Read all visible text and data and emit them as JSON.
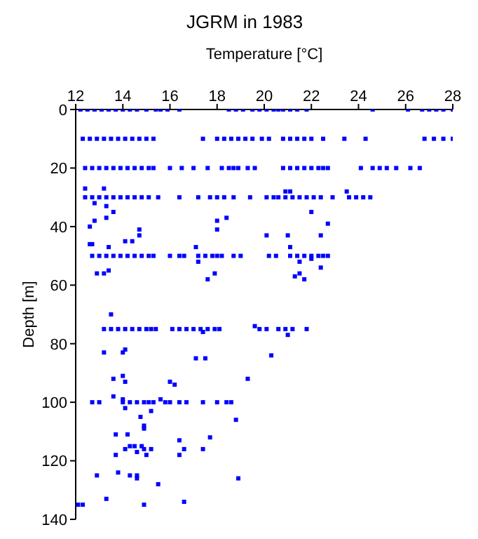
{
  "chart_data": {
    "type": "scatter",
    "title": "JGRM in 1983",
    "xlabel": "Temperature [°C]",
    "ylabel": "Depth [m]",
    "xlim": [
      12,
      28
    ],
    "xticks": [
      12,
      14,
      16,
      18,
      20,
      22,
      24,
      26,
      28
    ],
    "ylim": [
      140,
      0
    ],
    "yticks": [
      0,
      20,
      40,
      60,
      80,
      100,
      120,
      140
    ],
    "grid": false,
    "legend": false,
    "marker": "square",
    "series": [
      {
        "color": "#0000ff",
        "x": [
          12.2,
          12.5,
          12.8,
          13.1,
          13.4,
          13.7,
          14.0,
          14.3,
          14.6,
          15.0,
          15.4,
          15.6,
          15.9,
          16.4,
          18.5,
          18.8,
          19.1,
          19.5,
          19.8,
          20.1,
          20.4,
          20.6,
          20.8,
          21.1,
          21.4,
          21.8,
          24.6,
          26.1,
          26.7,
          27.0,
          27.3,
          27.6,
          28.0
        ],
        "values": [
          0,
          0,
          0,
          0,
          0,
          0,
          0,
          0,
          0,
          0,
          0,
          0,
          0,
          0,
          0,
          0,
          0,
          0,
          0,
          0,
          0,
          0,
          0,
          0,
          0,
          0,
          0,
          0,
          0,
          0,
          0,
          0,
          0
        ]
      },
      {
        "color": "#0000ff",
        "x": [
          12.3,
          12.6,
          12.9,
          13.2,
          13.5,
          13.8,
          14.1,
          14.4,
          14.7,
          15.0,
          15.3,
          17.4,
          18.0,
          18.3,
          18.6,
          18.9,
          19.2,
          19.5,
          19.9,
          20.2,
          20.8,
          21.1,
          21.4,
          21.7,
          22.0,
          22.5,
          23.4,
          24.3,
          26.8,
          27.2,
          27.6,
          28.0
        ],
        "values": [
          10,
          10,
          10,
          10,
          10,
          10,
          10,
          10,
          10,
          10,
          10,
          10,
          10,
          10,
          10,
          10,
          10,
          10,
          10,
          10,
          10,
          10,
          10,
          10,
          10,
          10,
          10,
          10,
          10,
          10,
          10,
          10
        ]
      },
      {
        "color": "#0000ff",
        "x": [
          12.4,
          12.7,
          13.0,
          13.3,
          13.6,
          13.9,
          14.2,
          14.5,
          14.8,
          15.1,
          15.3,
          16.0,
          16.5,
          17.0,
          17.6,
          18.2,
          18.5,
          18.7,
          18.9,
          19.3,
          19.6,
          20.8,
          21.1,
          21.4,
          21.7,
          22.0,
          22.3,
          22.5,
          22.7,
          24.1,
          24.6,
          24.9,
          25.2,
          25.6,
          26.2,
          26.6
        ],
        "values": [
          20,
          20,
          20,
          20,
          20,
          20,
          20,
          20,
          20,
          20,
          20,
          20,
          20,
          20,
          20,
          20,
          20,
          20,
          20,
          20,
          20,
          20,
          20,
          20,
          20,
          20,
          20,
          20,
          20,
          20,
          20,
          20,
          20,
          20,
          20,
          20
        ]
      },
      {
        "color": "#0000ff",
        "x": [
          12.4,
          12.7,
          13.0,
          13.3,
          13.6,
          13.9,
          14.2,
          14.5,
          14.8,
          15.1,
          15.5,
          16.4,
          17.2,
          17.7,
          18.0,
          18.3,
          18.7,
          19.4,
          20.1,
          20.4,
          20.6,
          20.9,
          21.2,
          21.5,
          21.8,
          22.1,
          22.4,
          22.9,
          23.6,
          23.9,
          24.2,
          24.5
        ],
        "values": [
          30,
          30,
          30,
          30,
          30,
          30,
          30,
          30,
          30,
          30,
          30,
          30,
          30,
          30,
          30,
          30,
          30,
          30,
          30,
          30,
          30,
          30,
          30,
          30,
          30,
          30,
          30,
          30,
          30,
          30,
          30,
          30
        ]
      },
      {
        "color": "#0000ff",
        "x": [
          12.7,
          13.0,
          13.3,
          13.6,
          13.9,
          14.2,
          14.5,
          14.8,
          15.1,
          15.3,
          16.0,
          16.4,
          16.6,
          17.2,
          17.5,
          17.8,
          18.0,
          18.2,
          18.7,
          19.0,
          20.2,
          20.5,
          21.1,
          21.4,
          21.7,
          22.0,
          22.3,
          22.5,
          22.7
        ],
        "values": [
          50,
          50,
          50,
          50,
          50,
          50,
          50,
          50,
          50,
          50,
          50,
          50,
          50,
          50,
          50,
          50,
          50,
          50,
          50,
          50,
          50,
          50,
          50,
          50,
          50,
          50,
          50,
          50,
          50
        ]
      },
      {
        "color": "#0000ff",
        "x": [
          13.2,
          13.5,
          13.8,
          14.1,
          14.4,
          14.7,
          15.0,
          15.2,
          15.4,
          16.1,
          16.4,
          16.7,
          17.0,
          17.3,
          17.6,
          17.9,
          18.1,
          19.8,
          20.1,
          20.6,
          20.9,
          21.2,
          21.8
        ],
        "values": [
          75,
          75,
          75,
          75,
          75,
          75,
          75,
          75,
          75,
          75,
          75,
          75,
          75,
          75,
          75,
          75,
          75,
          75,
          75,
          75,
          75,
          75,
          75
        ]
      },
      {
        "color": "#0000ff",
        "x": [
          12.7,
          13.0,
          14.0,
          14.3,
          14.6,
          14.9,
          15.1,
          15.3,
          15.8,
          16.0,
          16.4,
          16.7,
          17.4,
          18.0,
          18.4,
          18.6
        ],
        "values": [
          100,
          100,
          100,
          100,
          100,
          100,
          100,
          100,
          100,
          100,
          100,
          100,
          100,
          100,
          100,
          100
        ]
      },
      {
        "color": "#0000ff",
        "x": [
          12.4,
          13.2,
          20.9,
          21.1,
          23.5,
          12.8,
          12.6,
          12.6,
          12.7,
          12.8,
          13.3,
          13.3,
          13.6,
          13.4,
          14.1,
          14.4,
          14.7,
          14.7,
          12.9,
          13.2,
          13.4,
          13.5,
          13.2,
          14.1,
          14.0,
          17.1,
          17.2,
          18.0,
          18.0,
          18.4,
          17.9,
          17.6,
          20.1,
          21.0,
          21.1,
          21.5,
          21.3,
          21.5,
          21.7,
          22.0,
          22.0,
          22.4,
          22.4,
          22.7,
          17.4,
          21.0,
          17.1,
          17.5,
          20.3,
          19.6
        ],
        "values": [
          27,
          27,
          28,
          28,
          28,
          32,
          40,
          46,
          46,
          38,
          33,
          37,
          35,
          47,
          45,
          45,
          41,
          43,
          56,
          56,
          55,
          70,
          83,
          82,
          83,
          47,
          52,
          41,
          38,
          37,
          56,
          58,
          43,
          43,
          47,
          52,
          57,
          56,
          58,
          35,
          51,
          43,
          54,
          39,
          76,
          77,
          85,
          85,
          84,
          74
        ]
      },
      {
        "color": "#0000ff",
        "x": [
          13.6,
          14.0,
          14.1,
          16.0,
          16.2,
          19.3,
          13.6,
          14.0,
          15.6,
          14.1,
          15.2,
          14.75,
          14.9,
          14.9,
          18.8,
          13.7,
          14.2,
          17.7,
          16.4,
          14.3,
          14.5,
          14.8,
          14.1,
          14.6,
          14.9,
          15.2,
          16.6,
          17.4,
          13.7,
          15.0,
          16.4,
          12.9,
          13.8,
          14.3,
          14.6,
          14.6,
          18.9,
          15.5,
          13.3,
          16.6,
          12.1,
          12.3,
          14.9
        ],
        "values": [
          92,
          91,
          93,
          93,
          94,
          92,
          98,
          99,
          99,
          102,
          103,
          105,
          108,
          109,
          106,
          111,
          111,
          112,
          113,
          115,
          115,
          115,
          116,
          117,
          116,
          116,
          116,
          116,
          118,
          118,
          118,
          125,
          124,
          125,
          125,
          126,
          126,
          128,
          133,
          134,
          135,
          135,
          135
        ]
      }
    ]
  }
}
